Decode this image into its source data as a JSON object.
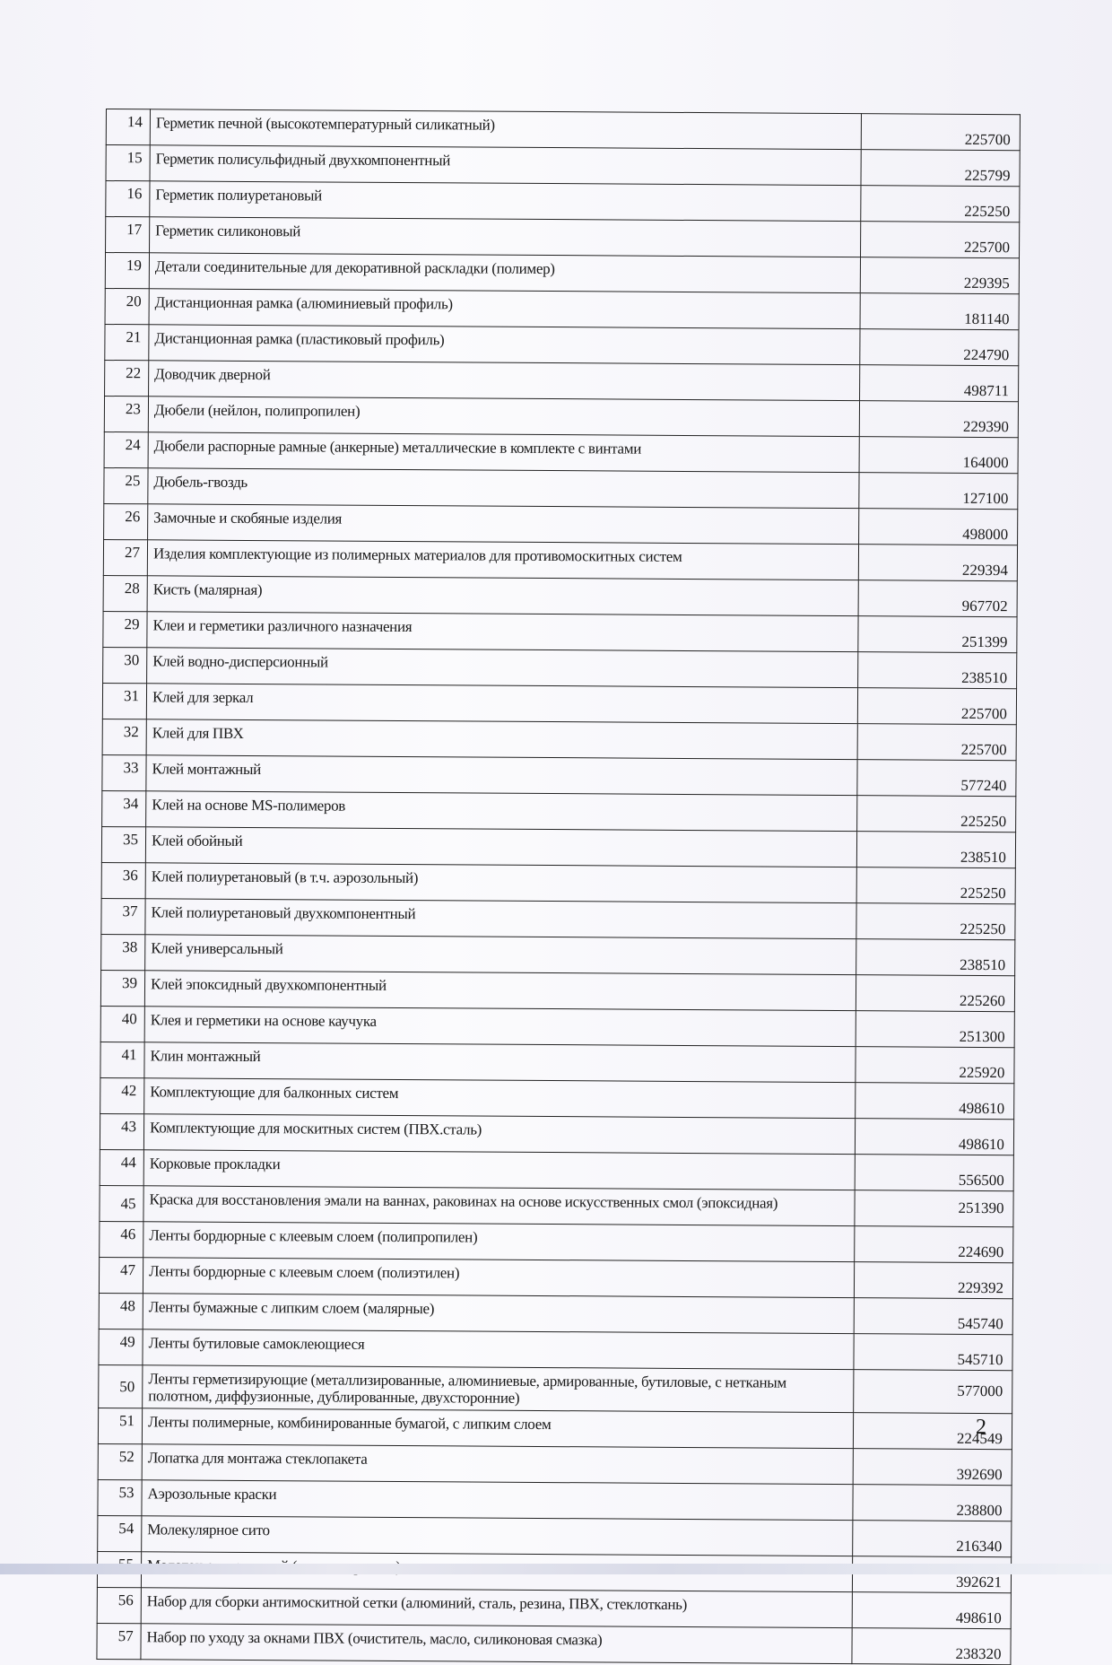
{
  "rows": [
    {
      "n": "14",
      "name": "Герметик печной (высокотемпературный силикатный)",
      "value": "225700"
    },
    {
      "n": "15",
      "name": "Герметик полисульфидный двухкомпонентный",
      "value": "225799"
    },
    {
      "n": "16",
      "name": "Герметик полиуретановый",
      "value": "225250"
    },
    {
      "n": "17",
      "name": "Герметик силиконовый",
      "value": "225700"
    },
    {
      "n": "19",
      "name": "Детали соединительные для декоративной раскладки (полимер)",
      "value": "229395"
    },
    {
      "n": "20",
      "name": "Дистанционная рамка (алюминиевый профиль)",
      "value": "181140"
    },
    {
      "n": "21",
      "name": "Дистанционная рамка (пластиковый профиль)",
      "value": "224790"
    },
    {
      "n": "22",
      "name": "Доводчик дверной",
      "value": "498711"
    },
    {
      "n": "23",
      "name": "Дюбели (нейлон, полипропилен)",
      "value": "229390"
    },
    {
      "n": "24",
      "name": "Дюбели распорные рамные (анкерные) металлические в комплекте с винтами",
      "value": "164000"
    },
    {
      "n": "25",
      "name": "Дюбель-гвоздь",
      "value": "127100"
    },
    {
      "n": "26",
      "name": "Замочные и скобяные изделия",
      "value": "498000"
    },
    {
      "n": "27",
      "name": "Изделия комплектующие из полимерных материалов для противомоскитных систем",
      "value": "229394"
    },
    {
      "n": "28",
      "name": "Кисть (малярная)",
      "value": "967702"
    },
    {
      "n": "29",
      "name": "Клеи и герметики различного назначения",
      "value": "251399"
    },
    {
      "n": "30",
      "name": "Клей водно-дисперсионный",
      "value": "238510"
    },
    {
      "n": "31",
      "name": "Клей для зеркал",
      "value": "225700"
    },
    {
      "n": "32",
      "name": "Клей для ПВХ",
      "value": "225700"
    },
    {
      "n": "33",
      "name": "Клей монтажный",
      "value": "577240"
    },
    {
      "n": "34",
      "name": "Клей на основе MS-полимеров",
      "value": "225250"
    },
    {
      "n": "35",
      "name": "Клей обойный",
      "value": "238510"
    },
    {
      "n": "36",
      "name": "Клей полиуретановый (в т.ч. аэрозольный)",
      "value": "225250"
    },
    {
      "n": "37",
      "name": "Клей полиуретановый двухкомпонентный",
      "value": "225250"
    },
    {
      "n": "38",
      "name": "Клей универсальный",
      "value": "238510"
    },
    {
      "n": "39",
      "name": "Клей эпоксидный двухкомпонентный",
      "value": "225260"
    },
    {
      "n": "40",
      "name": "Клея и герметики на основе каучука",
      "value": "251300"
    },
    {
      "n": "41",
      "name": "Клин монтажный",
      "value": "225920"
    },
    {
      "n": "42",
      "name": "Комплектующие для балконных систем",
      "value": "498610"
    },
    {
      "n": "43",
      "name": "Комплектующие для москитных систем (ПВХ.сталь)",
      "value": "498610"
    },
    {
      "n": "44",
      "name": "Корковые прокладки",
      "value": "556500"
    },
    {
      "n": "45",
      "name": "Краска для восстановления эмали на ваннах, раковинах на основе искусственных смол (эпоксидная)",
      "value": "251390",
      "tall": true
    },
    {
      "n": "46",
      "name": "Ленты бордюрные с клеевым слоем (полипропилен)",
      "value": "224690"
    },
    {
      "n": "47",
      "name": "Ленты бордюрные с клеевым слоем (полиэтилен)",
      "value": "229392"
    },
    {
      "n": "48",
      "name": "Ленты бумажные с липким слоем (малярные)",
      "value": "545740"
    },
    {
      "n": "49",
      "name": "Ленты бутиловые самоклеющиеся",
      "value": "545710"
    },
    {
      "n": "50",
      "name": "Ленты герметизирующие (металлизированные, алюминиевые, армированные, бутиловые, с нетканым полотном, диффузионные, дублированные, двухсторонние)",
      "value": "577000",
      "tall": true
    },
    {
      "n": "51",
      "name": "Ленты полимерные, комбинированные бумагой, с липким слоем",
      "value": "224549"
    },
    {
      "n": "52",
      "name": "Лопатка для монтажа стеклопакета",
      "value": "392690"
    },
    {
      "n": "53",
      "name": "Аэрозольные краски",
      "value": "238800"
    },
    {
      "n": "54",
      "name": "Молекулярное сито",
      "value": "216340"
    },
    {
      "n": "55",
      "name": "Молоток рихтовочный (пластик, резина)",
      "value": "392621"
    },
    {
      "n": "56",
      "name": "Набор для сборки антимоскитной сетки (алюминий, сталь, резина, ПВХ, стеклоткань)",
      "value": "498610"
    },
    {
      "n": "57",
      "name": "Набор по уходу за окнами ПВХ (очиститель, масло, силиконовая смазка)",
      "value": "238320"
    }
  ],
  "page_number": "2"
}
